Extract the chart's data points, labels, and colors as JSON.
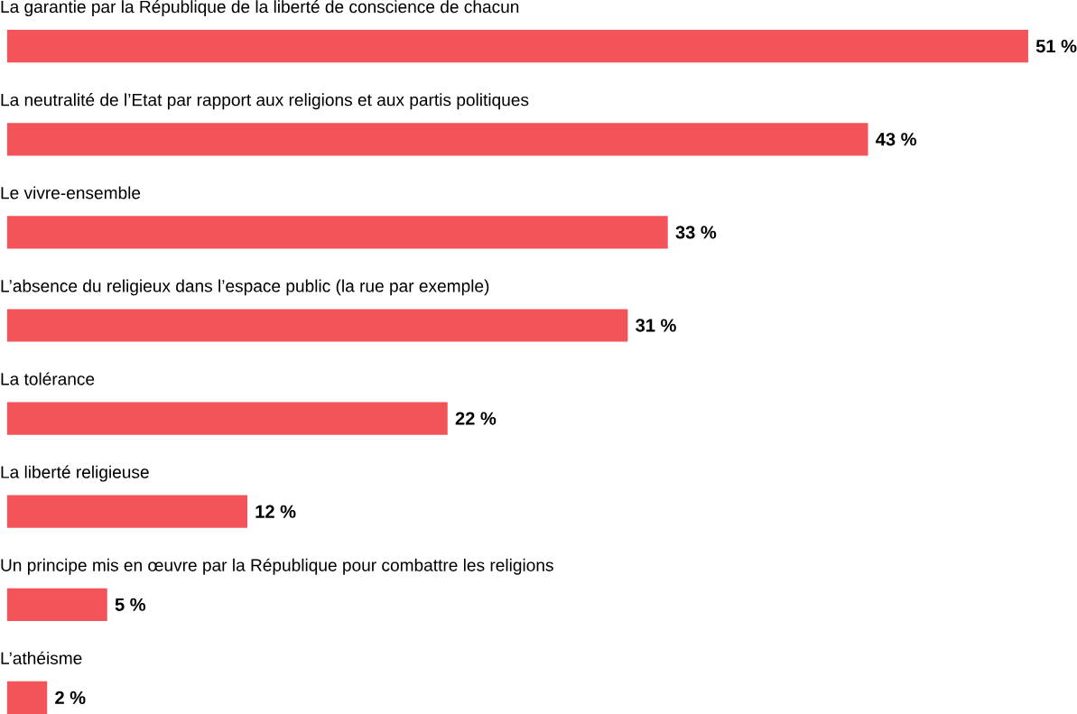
{
  "chart_data": {
    "type": "bar",
    "orientation": "horizontal",
    "categories": [
      "La garantie par la République de la liberté de conscience de chacun",
      "La neutralité de l’Etat par rapport aux religions et aux partis politiques",
      "Le vivre-ensemble",
      "L’absence du religieux dans l’espace public (la rue par exemple)",
      "La tolérance",
      "La liberté religieuse",
      "Un principe mis en œuvre par la République pour combattre les religions",
      "L’athéisme"
    ],
    "values": [
      51,
      43,
      33,
      31,
      22,
      12,
      5,
      2
    ],
    "value_labels": [
      "51 %",
      "43 %",
      "33 %",
      "31 %",
      "22 %",
      "12 %",
      "5 %",
      "2 %"
    ],
    "color": "#f2545a"
  }
}
